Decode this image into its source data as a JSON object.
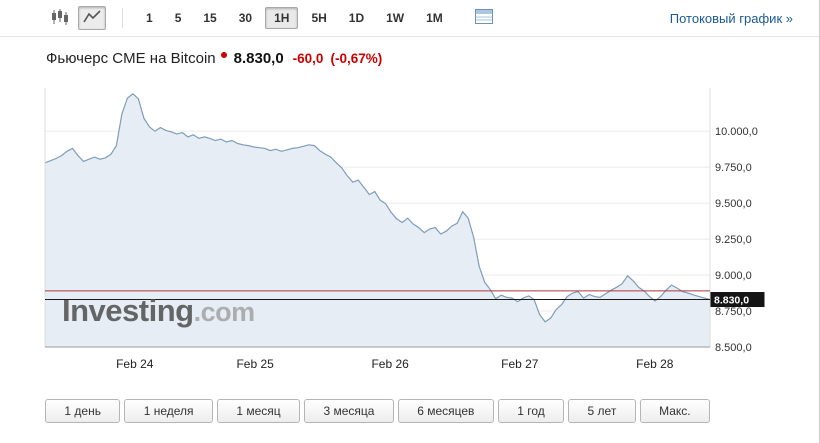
{
  "colors": {
    "negative_red": "#cc0000",
    "link_blue": "#1c5a96"
  },
  "toolbar": {
    "chart_type_buttons": [
      {
        "name": "candlestick-chart-button",
        "active": false
      },
      {
        "name": "line-chart-button",
        "active": true
      }
    ],
    "intervals": [
      {
        "label": "1",
        "active": false
      },
      {
        "label": "5",
        "active": false
      },
      {
        "label": "15",
        "active": false
      },
      {
        "label": "30",
        "active": false
      },
      {
        "label": "1H",
        "active": true
      },
      {
        "label": "5H",
        "active": false
      },
      {
        "label": "1D",
        "active": false
      },
      {
        "label": "1W",
        "active": false
      },
      {
        "label": "1M",
        "active": false
      }
    ],
    "streaming_link": "Потоковый график",
    "streaming_link_arrow": "»"
  },
  "header": {
    "title": "Фьючерс CME на Bitcoin",
    "price": "8.830,0",
    "change": "-60,0",
    "change_pct": "(-0,67%)"
  },
  "watermark": {
    "main": "Investing",
    "suffix": ".com"
  },
  "chart_data": {
    "type": "area",
    "title": "Фьючерс CME на Bitcoin, 1H",
    "ylim": [
      8500,
      10300
    ],
    "grid": true,
    "y_ticks": [
      {
        "value": 10000,
        "label": "10.000,0"
      },
      {
        "value": 9750,
        "label": "9.750,0"
      },
      {
        "value": 9500,
        "label": "9.500,0"
      },
      {
        "value": 9250,
        "label": "9.250,0"
      },
      {
        "value": 9000,
        "label": "9.000,0"
      },
      {
        "value": 8750,
        "label": "8.750,0"
      },
      {
        "value": 8500,
        "label": "8.500,0"
      }
    ],
    "x_ticks": [
      {
        "label": "Feb 24",
        "pos": 0.135
      },
      {
        "label": "Feb 25",
        "pos": 0.316
      },
      {
        "label": "Feb 26",
        "pos": 0.519
      },
      {
        "label": "Feb 27",
        "pos": 0.714
      },
      {
        "label": "Feb 28",
        "pos": 0.917
      }
    ],
    "values": [
      9780,
      9795,
      9810,
      9830,
      9860,
      9880,
      9830,
      9790,
      9805,
      9820,
      9805,
      9815,
      9840,
      9900,
      10120,
      10230,
      10260,
      10225,
      10090,
      10030,
      10000,
      10025,
      10005,
      9995,
      9980,
      9990,
      9960,
      9975,
      9950,
      9960,
      9950,
      9935,
      9945,
      9925,
      9935,
      9915,
      9905,
      9900,
      9890,
      9885,
      9880,
      9865,
      9875,
      9860,
      9870,
      9880,
      9885,
      9895,
      9905,
      9900,
      9865,
      9840,
      9820,
      9780,
      9745,
      9690,
      9645,
      9660,
      9610,
      9560,
      9580,
      9520,
      9495,
      9435,
      9390,
      9365,
      9395,
      9355,
      9330,
      9295,
      9320,
      9330,
      9285,
      9305,
      9340,
      9360,
      9440,
      9395,
      9260,
      9060,
      8950,
      8900,
      8835,
      8860,
      8845,
      8840,
      8815,
      8840,
      8855,
      8830,
      8725,
      8675,
      8700,
      8760,
      8795,
      8850,
      8875,
      8885,
      8840,
      8865,
      8850,
      8845,
      8870,
      8895,
      8915,
      8940,
      8995,
      8960,
      8915,
      8890,
      8850,
      8820,
      8850,
      8895,
      8930,
      8910,
      8885,
      8875,
      8862,
      8850,
      8840,
      8830
    ],
    "current_price": 8830,
    "current_price_label": "8.830,0",
    "prev_close": 8890,
    "colors": {
      "line": "#7f9db9",
      "fill": "#e6edf4",
      "grid": "#ebebeb",
      "axis": "#9a9a9a",
      "plot_border": "#dddddd",
      "prev_close_line": "#aa3939",
      "current_price_line": "#1a1a1a",
      "price_tag_bg": "#141414",
      "price_tag_text": "#ffffff"
    }
  },
  "range_buttons": [
    {
      "label": "1 день"
    },
    {
      "label": "1 неделя"
    },
    {
      "label": "1 месяц"
    },
    {
      "label": "3 месяца"
    },
    {
      "label": "6 месяцев"
    },
    {
      "label": "1 год"
    },
    {
      "label": "5 лет"
    },
    {
      "label": "Макс."
    }
  ]
}
